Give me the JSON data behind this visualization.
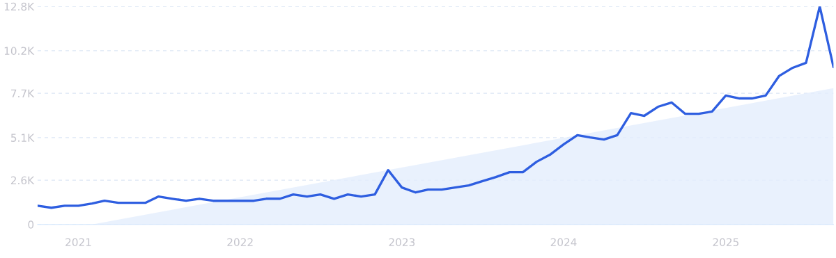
{
  "chart_data": {
    "type": "line",
    "x": [
      "2020-10",
      "2020-11",
      "2020-12",
      "2021-01",
      "2021-02",
      "2021-03",
      "2021-04",
      "2021-05",
      "2021-06",
      "2021-07",
      "2021-08",
      "2021-09",
      "2021-10",
      "2021-11",
      "2021-12",
      "2022-01",
      "2022-02",
      "2022-03",
      "2022-04",
      "2022-05",
      "2022-06",
      "2022-07",
      "2022-08",
      "2022-09",
      "2022-10",
      "2022-11",
      "2022-12",
      "2023-01",
      "2023-02",
      "2023-03",
      "2023-04",
      "2023-05",
      "2023-06",
      "2023-07",
      "2023-08",
      "2023-09",
      "2023-10",
      "2023-11",
      "2023-12",
      "2024-01",
      "2024-02",
      "2024-03",
      "2024-04",
      "2024-05",
      "2024-06",
      "2024-07",
      "2024-08",
      "2024-09",
      "2024-10",
      "2024-11",
      "2024-12",
      "2025-01",
      "2025-02",
      "2025-03",
      "2025-04",
      "2025-05",
      "2025-06",
      "2025-07",
      "2025-08",
      "2025-09"
    ],
    "series": [
      {
        "type": "area",
        "color": "#e3eefc",
        "x": [
          "2021-02",
          "2025-09"
        ],
        "values": [
          0,
          8000
        ]
      },
      {
        "color": "#2e5ee0",
        "values": [
          1100,
          980,
          1100,
          1100,
          1230,
          1390,
          1270,
          1270,
          1270,
          1640,
          1510,
          1390,
          1510,
          1390,
          1390,
          1390,
          1390,
          1510,
          1510,
          1760,
          1640,
          1760,
          1510,
          1760,
          1640,
          1760,
          3190,
          2170,
          1880,
          2050,
          2050,
          2170,
          2290,
          2540,
          2780,
          3070,
          3070,
          3680,
          4090,
          4700,
          5240,
          5110,
          4990,
          5240,
          6540,
          6380,
          6910,
          7160,
          6500,
          6500,
          6630,
          7570,
          7400,
          7400,
          7570,
          8710,
          9200,
          9490,
          12800,
          9240
        ]
      }
    ],
    "xlim": [
      "2020-10",
      "2025-09"
    ],
    "xticks": [
      "2021",
      "2022",
      "2023",
      "2024",
      "2025"
    ],
    "ylim": [
      0,
      12800
    ],
    "yticks": [
      0,
      {
        "value": 2600,
        "label": "2.6K"
      },
      {
        "value": 5100,
        "label": "5.1K"
      },
      {
        "value": 7700,
        "label": "7.7K"
      },
      {
        "value": 10200,
        "label": "10.2K"
      },
      {
        "value": 12800,
        "label": "12.8K"
      }
    ],
    "grid": "y",
    "line_style": "solid",
    "marker": "none"
  }
}
